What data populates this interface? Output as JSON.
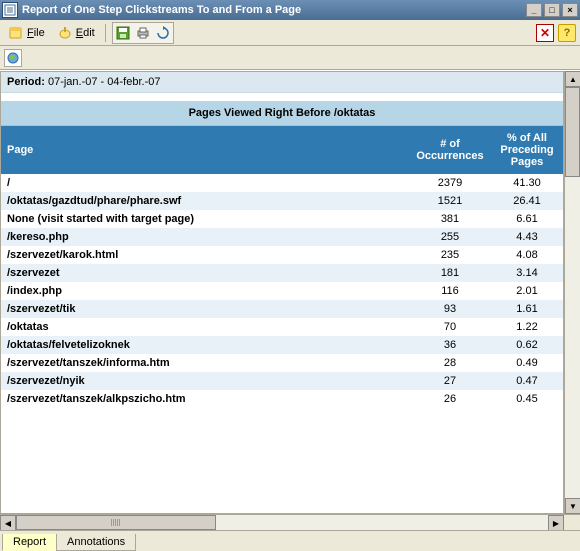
{
  "window": {
    "title": "Report of One Step Clickstreams To and From a Page"
  },
  "toolbar": {
    "file_label": "File",
    "edit_label": "Edit"
  },
  "period": {
    "label": "Period:",
    "value": "07-jan.-07 - 04-febr.-07"
  },
  "section": {
    "title": "Pages Viewed Right Before /oktatas"
  },
  "columns": {
    "page": "Page",
    "occurrences": "# of Occurrences",
    "percent": "% of All Preceding Pages"
  },
  "rows": [
    {
      "page": "/",
      "occ": "2379",
      "pct": "41.30"
    },
    {
      "page": "/oktatas/gazdtud/phare/phare.swf",
      "occ": "1521",
      "pct": "26.41"
    },
    {
      "page": "None (visit started with target page)",
      "occ": "381",
      "pct": "6.61"
    },
    {
      "page": "/kereso.php",
      "occ": "255",
      "pct": "4.43"
    },
    {
      "page": "/szervezet/karok.html",
      "occ": "235",
      "pct": "4.08"
    },
    {
      "page": "/szervezet",
      "occ": "181",
      "pct": "3.14"
    },
    {
      "page": "/index.php",
      "occ": "116",
      "pct": "2.01"
    },
    {
      "page": "/szervezet/tik",
      "occ": "93",
      "pct": "1.61"
    },
    {
      "page": "/oktatas",
      "occ": "70",
      "pct": "1.22"
    },
    {
      "page": "/oktatas/felvetelizoknek",
      "occ": "36",
      "pct": "0.62"
    },
    {
      "page": "/szervezet/tanszek/informa.htm",
      "occ": "28",
      "pct": "0.49"
    },
    {
      "page": "/szervezet/nyik",
      "occ": "27",
      "pct": "0.47"
    },
    {
      "page": "/szervezet/tanszek/alkpszicho.htm",
      "occ": "26",
      "pct": "0.45"
    }
  ],
  "tabs": {
    "report": "Report",
    "annotations": "Annotations"
  },
  "colors": {
    "titlebar_start": "#6b8fb5",
    "titlebar_end": "#4a6d94",
    "header_row": "#2f7bb1",
    "section_bar": "#b6d6e8",
    "period_bar": "#dbe8f0",
    "row_alt": "#e7f1f7",
    "active_tab": "#ffffc8",
    "chrome": "#ece9d8"
  }
}
